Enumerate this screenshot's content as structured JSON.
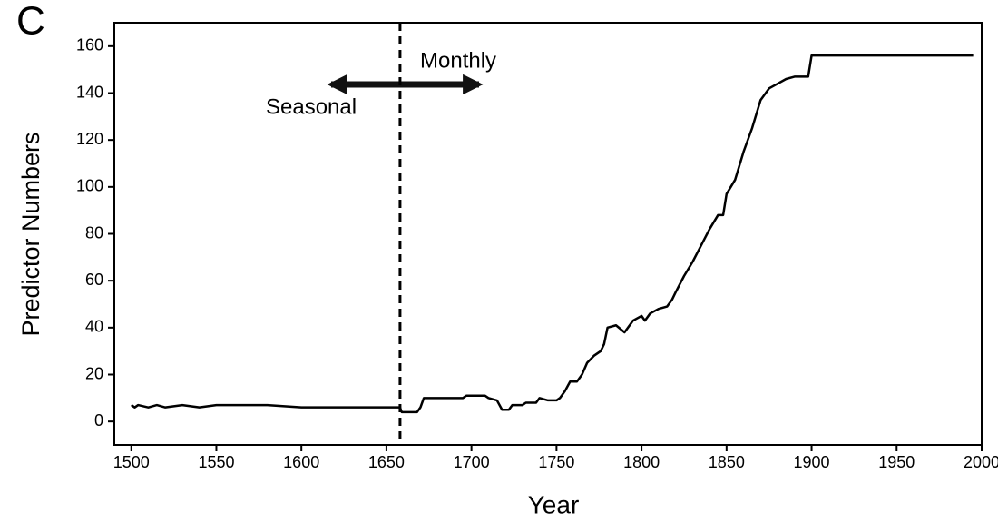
{
  "chart_data": {
    "type": "line",
    "panel_label": "C",
    "x_label": "Year",
    "y_label": "Predictor Numbers",
    "annotations": {
      "right": "Monthly",
      "left": "Seasonal"
    },
    "vline": 1658,
    "x": [
      1500,
      1502,
      1504,
      1510,
      1515,
      1520,
      1530,
      1540,
      1550,
      1560,
      1580,
      1600,
      1658,
      1659,
      1668,
      1670,
      1672,
      1695,
      1697,
      1708,
      1710,
      1715,
      1718,
      1722,
      1724,
      1730,
      1732,
      1738,
      1740,
      1745,
      1750,
      1752,
      1755,
      1758,
      1762,
      1765,
      1768,
      1772,
      1776,
      1778,
      1780,
      1785,
      1790,
      1795,
      1800,
      1802,
      1805,
      1810,
      1815,
      1818,
      1820,
      1825,
      1830,
      1835,
      1840,
      1845,
      1848,
      1850,
      1855,
      1860,
      1865,
      1870,
      1875,
      1880,
      1885,
      1890,
      1898,
      1900,
      1995
    ],
    "series": [
      {
        "name": "Predictor Numbers",
        "color": "#000000",
        "values": [
          7,
          6,
          7,
          6,
          7,
          6,
          7,
          6,
          7,
          7,
          7,
          6,
          6,
          4,
          4,
          6,
          10,
          10,
          11,
          11,
          10,
          9,
          5,
          5,
          7,
          7,
          8,
          8,
          10,
          9,
          9,
          10,
          13,
          17,
          17,
          20,
          25,
          28,
          30,
          33,
          40,
          41,
          38,
          43,
          45,
          43,
          46,
          48,
          49,
          52,
          55,
          62,
          68,
          75,
          82,
          88,
          88,
          97,
          103,
          115,
          125,
          137,
          142,
          144,
          146,
          147,
          147,
          156,
          156
        ]
      }
    ],
    "xlim": [
      1490,
      2000
    ],
    "ylim": [
      -10,
      170
    ],
    "xticks": [
      1500,
      1550,
      1600,
      1650,
      1700,
      1750,
      1800,
      1850,
      1900,
      1950,
      2000
    ],
    "yticks": [
      0,
      20,
      40,
      60,
      80,
      100,
      120,
      140,
      160
    ]
  }
}
